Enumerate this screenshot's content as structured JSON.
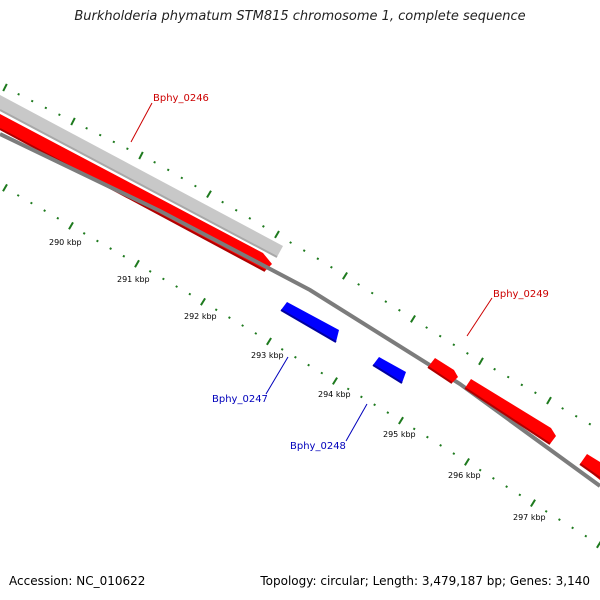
{
  "title": "Burkholderia phymatum STM815 chromosome 1, complete sequence",
  "accession": "Accession: NC_010622",
  "summary": "Topology: circular; Length: 3,479,187 bp; Genes: 3,140",
  "colors": {
    "forward_gene": "#ff0000",
    "reverse_gene": "#0000ff",
    "feature": "#c8c8c8",
    "backbone": "#808080",
    "tick": "#1e7a1e",
    "forward_label": "#cc0000",
    "reverse_label": "#0000bb"
  },
  "axis_ticks": [
    {
      "label": "290 kbp"
    },
    {
      "label": "291 kbp"
    },
    {
      "label": "292 kbp"
    },
    {
      "label": "293 kbp"
    },
    {
      "label": "294 kbp"
    },
    {
      "label": "295 kbp"
    },
    {
      "label": "296 kbp"
    },
    {
      "label": "297 kbp"
    }
  ],
  "genes": [
    {
      "name": "Bphy_0246",
      "strand": "forward"
    },
    {
      "name": "Bphy_0247",
      "strand": "reverse"
    },
    {
      "name": "Bphy_0248",
      "strand": "reverse"
    },
    {
      "name": "Bphy_0249",
      "strand": "forward"
    }
  ]
}
